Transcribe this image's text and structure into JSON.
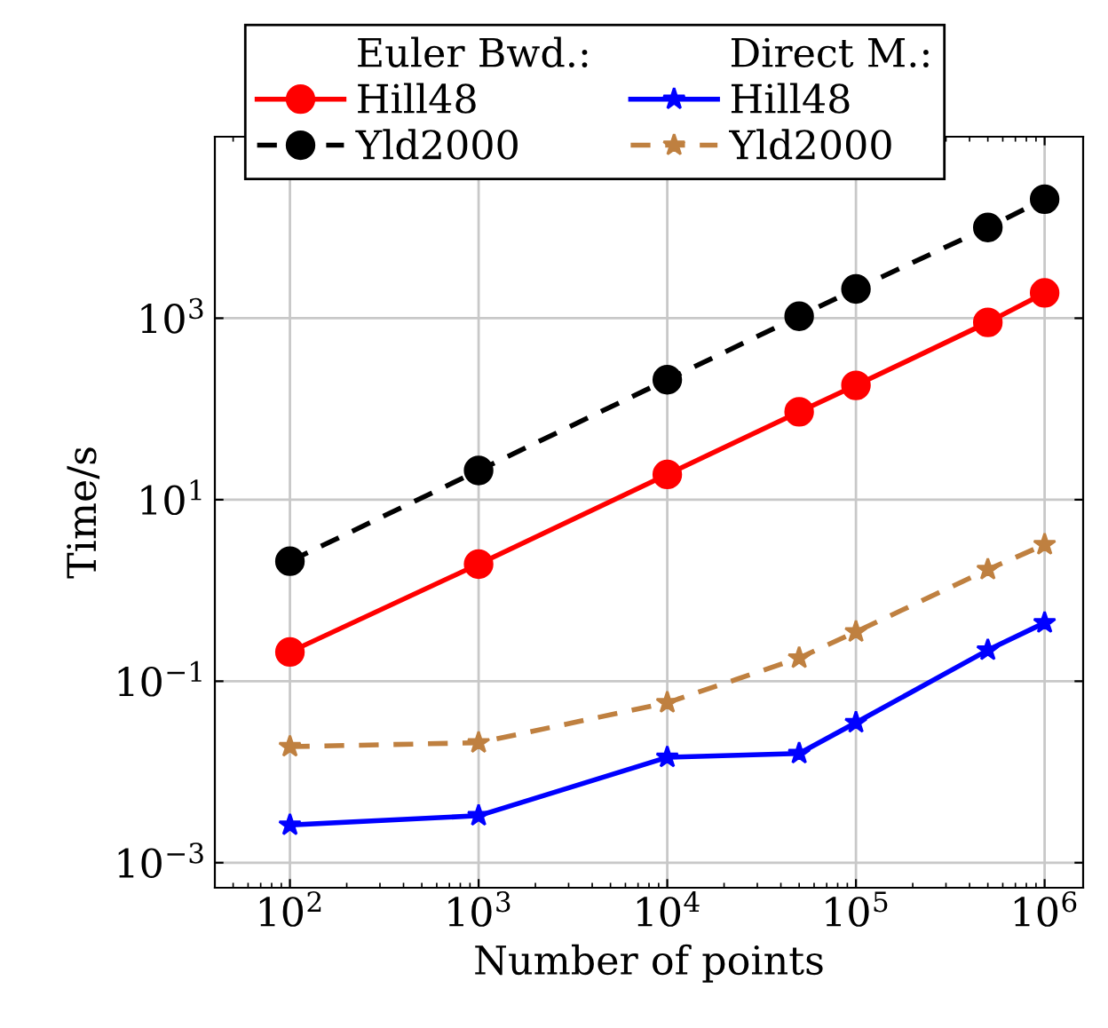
{
  "chart_data": {
    "type": "line",
    "xlabel": "Number of points",
    "ylabel": "Time/s",
    "x": [
      100,
      1000,
      10000,
      50000,
      100000,
      500000,
      1000000
    ],
    "series": [
      {
        "name": "Hill48",
        "color": "#ff0000",
        "values": [
          0.21,
          1.95,
          19,
          93,
          182,
          900,
          1900
        ],
        "marker": "circle",
        "line_style": "solid"
      },
      {
        "name": "Yld2000",
        "color": "#000000",
        "values": [
          2.1,
          21,
          210,
          1050,
          2100,
          10000,
          20500
        ],
        "marker": "circle",
        "line_style": "dashed"
      },
      {
        "name": "Hill48",
        "color": "#0000ff",
        "values": [
          0.0026,
          0.0033,
          0.0145,
          0.016,
          0.035,
          0.22,
          0.44
        ],
        "marker": "star",
        "line_style": "solid"
      },
      {
        "name": "Yld2000",
        "color": "#bf8040",
        "values": [
          0.019,
          0.021,
          0.058,
          0.18,
          0.35,
          1.7,
          3.2
        ],
        "marker": "star",
        "line_style": "dashed"
      }
    ],
    "annotations": [
      "Euler Bwd.:",
      "Direct M.:"
    ],
    "log": "xy",
    "xlim": [
      40,
      1600000
    ],
    "ylim": [
      0.00053,
      100000
    ],
    "xticks": [
      {
        "value": 100,
        "label": "10$^{2}$"
      },
      {
        "value": 1000,
        "label": "10$^{3}$"
      },
      {
        "value": 10000,
        "label": "10$^{4}$"
      },
      {
        "value": 100000,
        "label": "10$^{5}$"
      },
      {
        "value": 1000000,
        "label": "10$^{6}$"
      }
    ],
    "yticks": [
      {
        "value": 0.001,
        "label": "10$^{−3}$"
      },
      {
        "value": 0.1,
        "label": "10$^{−1}$"
      },
      {
        "value": 10,
        "label": "10$^{1}$"
      },
      {
        "value": 1000,
        "label": "10$^{3}$"
      }
    ],
    "grid": true,
    "legend": "top"
  }
}
